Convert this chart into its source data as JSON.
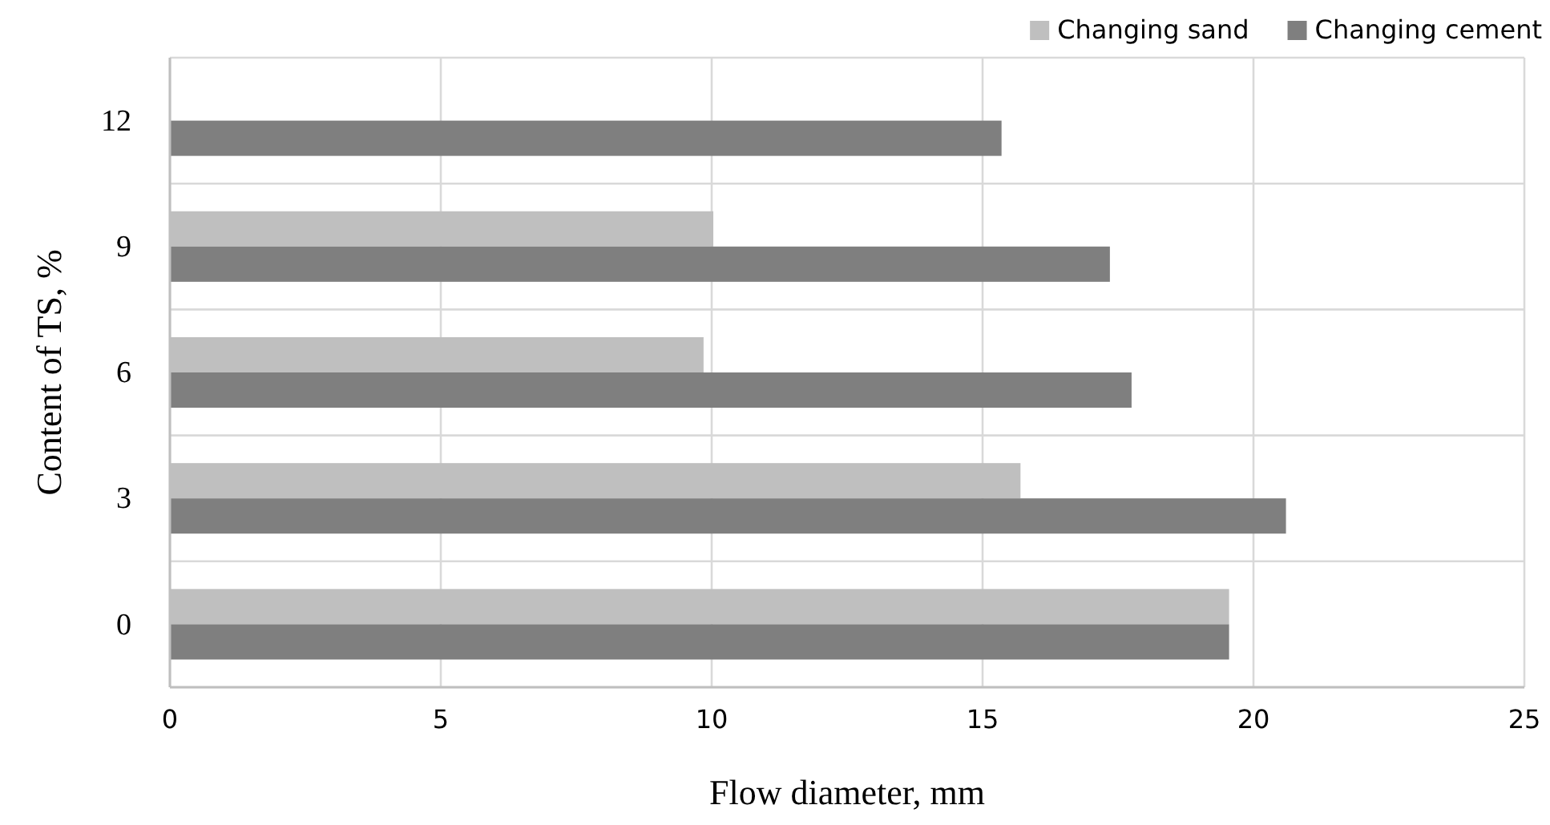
{
  "chart_data": {
    "type": "bar",
    "orientation": "horizontal",
    "xlabel": "Flow diameter, mm",
    "ylabel": "Content of TS, %",
    "categories": [
      "12",
      "9",
      "6",
      "3",
      "0"
    ],
    "series": [
      {
        "name": "Changing sand",
        "color": "#bfbfbf",
        "values": [
          null,
          10.03,
          9.85,
          15.7,
          19.55
        ]
      },
      {
        "name": "Changing cement",
        "color": "#7f7f7f",
        "values": [
          15.35,
          17.35,
          17.75,
          20.6,
          19.55
        ]
      }
    ],
    "xlim": [
      0,
      25
    ],
    "xticks": [
      0,
      5,
      10,
      15,
      20,
      25
    ],
    "grid": true,
    "legend": "top right"
  }
}
